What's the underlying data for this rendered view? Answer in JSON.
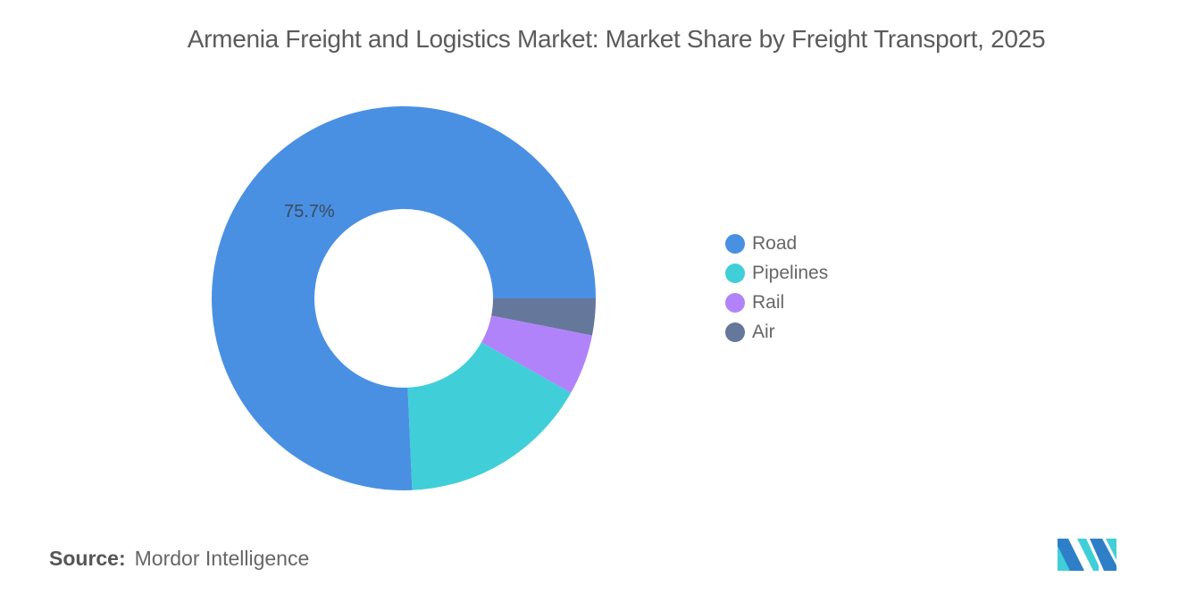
{
  "header": {
    "title": "Armenia Freight and Logistics Market: Market Share by Freight Transport, 2025"
  },
  "chart_data": {
    "type": "pie",
    "subtype": "donut",
    "title": "Armenia Freight and Logistics Market: Market Share by Freight Transport, 2025",
    "categories": [
      "Road",
      "Pipelines",
      "Rail",
      "Air"
    ],
    "values": [
      75.7,
      16.1,
      5.1,
      3.1
    ],
    "unit": "%",
    "colors": [
      "#4A90E2",
      "#40CFD8",
      "#B183FA",
      "#65779A"
    ],
    "data_labels": [
      {
        "category": "Road",
        "text": "75.7%"
      }
    ],
    "legend_position": "right"
  },
  "legend": {
    "items": [
      {
        "label": "Road",
        "color": "#4A90E2"
      },
      {
        "label": "Pipelines",
        "color": "#40CFD8"
      },
      {
        "label": "Rail",
        "color": "#B183FA"
      },
      {
        "label": "Air",
        "color": "#65779A"
      }
    ]
  },
  "labels": {
    "road_pct": "75.7%"
  },
  "footer": {
    "source_key": "Source:",
    "source_value": "Mordor Intelligence"
  },
  "logo": {
    "icon": "mordor-intelligence-logo-icon",
    "colors": [
      "#2E7FC8",
      "#40CFD8"
    ]
  }
}
